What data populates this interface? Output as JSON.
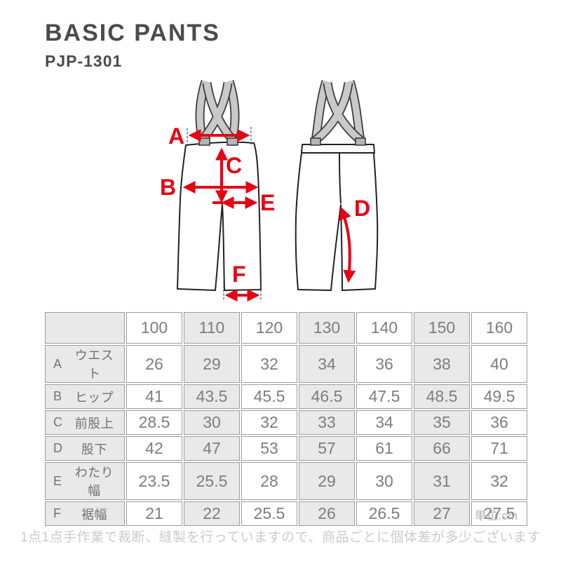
{
  "header": {
    "title": "BASIC PANTS",
    "model": "PJP-1301"
  },
  "diagram": {
    "labels": {
      "A": "A",
      "B": "B",
      "C": "C",
      "D": "D",
      "E": "E",
      "F": "F"
    },
    "views": [
      "front",
      "back"
    ]
  },
  "size_table": {
    "columns": [
      "100",
      "110",
      "120",
      "130",
      "140",
      "150",
      "160"
    ],
    "rows": [
      {
        "key": "A",
        "label": "ウエスト",
        "values": [
          "26",
          "29",
          "32",
          "34",
          "36",
          "38",
          "40"
        ]
      },
      {
        "key": "B",
        "label": "ヒップ",
        "values": [
          "41",
          "43.5",
          "45.5",
          "46.5",
          "47.5",
          "48.5",
          "49.5"
        ]
      },
      {
        "key": "C",
        "label": "前股上",
        "values": [
          "28.5",
          "30",
          "32",
          "33",
          "34",
          "35",
          "36"
        ]
      },
      {
        "key": "D",
        "label": "股下",
        "values": [
          "42",
          "47",
          "53",
          "57",
          "61",
          "66",
          "71"
        ]
      },
      {
        "key": "E",
        "label": "わたり幅",
        "values": [
          "23.5",
          "25.5",
          "28",
          "29",
          "30",
          "31",
          "32"
        ]
      },
      {
        "key": "F",
        "label": "裾幅",
        "values": [
          "21",
          "22",
          "25.5",
          "26",
          "26.5",
          "27",
          "27.5"
        ]
      }
    ],
    "unit_note": "単位:cm"
  },
  "footer": {
    "note": "1点1点手作業で裁断、縫製を行っていますので、商品ごとに個体差が多少ございます"
  },
  "colors": {
    "accent_red": "#e60012",
    "cell_gray": "#e9e9e9",
    "table_border": "#9c9c9c",
    "table_text": "#7d7d7d",
    "title_text": "#4b4b4b",
    "footer_text": "#cbcbcb"
  }
}
